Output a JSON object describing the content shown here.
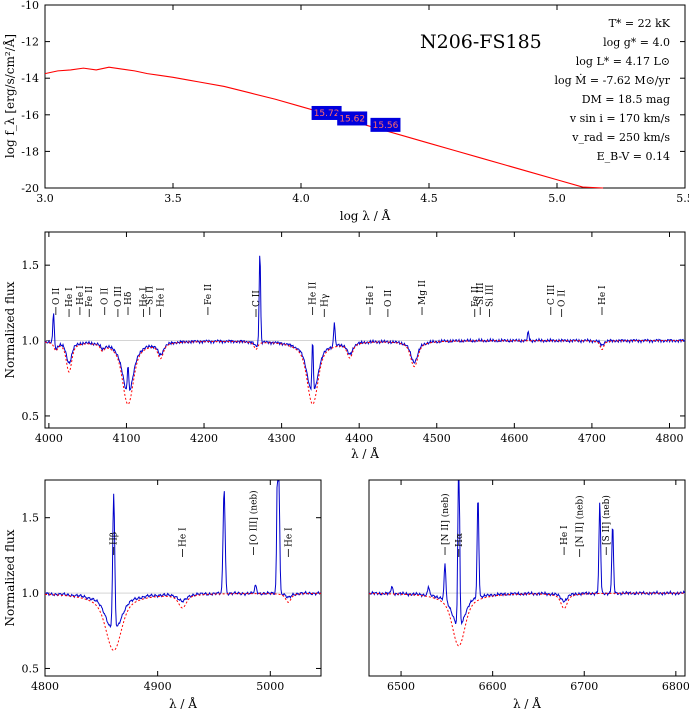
{
  "colors": {
    "model": "#ff0000",
    "observed": "#0000cc",
    "photbox": "#0000dd",
    "photlabel": "#ff6a6a"
  },
  "chart_data": [
    {
      "type": "line",
      "panel": "sed",
      "title": "N206-FS185",
      "xlabel": "log λ / Å",
      "ylabel": "log f_λ [erg/s/cm²/Å]",
      "xlim": [
        3.0,
        5.5
      ],
      "ylim": [
        -20,
        -10
      ],
      "xticks": [
        "3.0",
        "3.5",
        "4.0",
        "4.5",
        "5.0",
        "5.5"
      ],
      "yticks": [
        "-20",
        "-18",
        "-16",
        "-14",
        "-12",
        "-10"
      ],
      "model_sed": {
        "x": [
          3.0,
          3.05,
          3.1,
          3.15,
          3.2,
          3.25,
          3.3,
          3.35,
          3.4,
          3.45,
          3.5,
          3.56,
          3.6,
          3.7,
          3.8,
          3.9,
          4.0,
          4.1,
          4.2,
          4.3,
          4.4,
          4.5,
          4.6,
          4.7,
          4.8,
          4.9,
          5.0,
          5.1,
          5.18
        ],
        "y": [
          -13.75,
          -13.6,
          -13.55,
          -13.45,
          -13.55,
          -13.4,
          -13.5,
          -13.6,
          -13.75,
          -13.85,
          -13.95,
          -14.1,
          -14.2,
          -14.45,
          -14.8,
          -15.15,
          -15.55,
          -15.95,
          -16.35,
          -16.75,
          -17.15,
          -17.55,
          -17.95,
          -18.35,
          -18.75,
          -19.15,
          -19.55,
          -19.95,
          -20.0
        ]
      },
      "photometry": [
        {
          "x": 4.1,
          "y": -15.9,
          "label": "15.72"
        },
        {
          "x": 4.2,
          "y": -16.2,
          "label": "15.62"
        },
        {
          "x": 4.33,
          "y": -16.55,
          "label": "15.56"
        }
      ],
      "parameters": [
        "T* = 22 kK",
        "log g* = 4.0",
        "log L* = 4.17 L⊙",
        "log Ṁ = -7.62 M⊙/yr",
        "DM = 18.5 mag",
        "v sin i = 170 km/s",
        "v_rad = 250 km/s",
        "E_B-V = 0.14"
      ]
    },
    {
      "type": "line",
      "panel": "blue-spectrum",
      "xlabel": "λ / Å",
      "ylabel": "Normalized flux",
      "xlim": [
        3995,
        4820
      ],
      "ylim": [
        0.42,
        1.72
      ],
      "xticks": [
        "4000",
        "4100",
        "4200",
        "4300",
        "4400",
        "4500",
        "4600",
        "4700",
        "4800"
      ],
      "yticks": [
        "0.5",
        "1.0",
        "1.5"
      ],
      "absorption_lines": [
        {
          "center": 4009,
          "depth_obs": 0.04,
          "depth_model": 0.05,
          "width": 2
        },
        {
          "center": 4026,
          "depth_obs": 0.14,
          "depth_model": 0.2,
          "width": 3
        },
        {
          "center": 4069,
          "depth_obs": 0.03,
          "depth_model": 0.04,
          "width": 2
        },
        {
          "center": 4102,
          "depth_obs": 0.35,
          "depth_model": 0.42,
          "width": 6
        },
        {
          "center": 4144,
          "depth_obs": 0.08,
          "depth_model": 0.1,
          "width": 3
        },
        {
          "center": 4267,
          "depth_obs": 0.03,
          "depth_model": 0.05,
          "width": 2
        },
        {
          "center": 4340,
          "depth_obs": 0.35,
          "depth_model": 0.42,
          "width": 6
        },
        {
          "center": 4388,
          "depth_obs": 0.08,
          "depth_model": 0.1,
          "width": 3
        },
        {
          "center": 4471,
          "depth_obs": 0.14,
          "depth_model": 0.17,
          "width": 4
        },
        {
          "center": 4713,
          "depth_obs": 0.03,
          "depth_model": 0.06,
          "width": 2
        }
      ],
      "emission_spikes": [
        {
          "center": 4006,
          "height": 0.22
        },
        {
          "center": 4102,
          "height": 0.2
        },
        {
          "center": 4272,
          "height": 0.62
        },
        {
          "center": 4340,
          "height": 0.35
        },
        {
          "center": 4368,
          "height": 0.16
        },
        {
          "center": 4618,
          "height": 0.06
        }
      ],
      "line_ids": [
        {
          "x": 4009,
          "label": "O II"
        },
        {
          "x": 4026,
          "label": "He I"
        },
        {
          "x": 4040,
          "label": "He I"
        },
        {
          "x": 4052,
          "label": "Fe II"
        },
        {
          "x": 4072,
          "label": "O II"
        },
        {
          "x": 4089,
          "label": "O III"
        },
        {
          "x": 4102,
          "label": "Hδ"
        },
        {
          "x": 4122,
          "label": "He I"
        },
        {
          "x": 4130,
          "label": "Si II"
        },
        {
          "x": 4144,
          "label": "He I"
        },
        {
          "x": 4205,
          "label": "Fe II"
        },
        {
          "x": 4267,
          "label": "C II"
        },
        {
          "x": 4340,
          "label": "He II"
        },
        {
          "x": 4355,
          "label": "Hγ"
        },
        {
          "x": 4414,
          "label": "He I"
        },
        {
          "x": 4437,
          "label": "O II"
        },
        {
          "x": 4481,
          "label": "Mg II"
        },
        {
          "x": 4549,
          "label": "Fe II"
        },
        {
          "x": 4556,
          "label": "Si III"
        },
        {
          "x": 4568,
          "label": "Si III"
        },
        {
          "x": 4647,
          "label": "C III"
        },
        {
          "x": 4661,
          "label": "O II"
        },
        {
          "x": 4713,
          "label": "He I"
        }
      ]
    },
    {
      "type": "line",
      "panel": "hbeta-spectrum",
      "xlabel": "λ / Å",
      "ylabel": "Normalized flux",
      "xlim": [
        4800,
        5045
      ],
      "ylim": [
        0.45,
        1.75
      ],
      "xticks": [
        "4800",
        "4900",
        "5000"
      ],
      "yticks": [
        "0.5",
        "1.0",
        "1.5"
      ],
      "absorption_lines": [
        {
          "center": 4861,
          "depth_obs": 0.25,
          "depth_model": 0.38,
          "width": 6
        },
        {
          "center": 4922,
          "depth_obs": 0.05,
          "depth_model": 0.09,
          "width": 3
        },
        {
          "center": 5016,
          "depth_obs": 0.03,
          "depth_model": 0.06,
          "width": 2
        }
      ],
      "emission_spikes": [
        {
          "center": 4861,
          "height": 0.9
        },
        {
          "center": 4959,
          "height": 0.7
        },
        {
          "center": 4987,
          "height": 0.05
        },
        {
          "center": 5007,
          "height": 1.4
        }
      ],
      "line_ids": [
        {
          "x": 4861,
          "label": "Hβ"
        },
        {
          "x": 4922,
          "label": "He I"
        },
        {
          "x": 4985,
          "label": "[O III] (neb)"
        },
        {
          "x": 5016,
          "label": "He I"
        }
      ]
    },
    {
      "type": "line",
      "panel": "halpha-spectrum",
      "xlabel": "λ / Å",
      "xlim": [
        6465,
        6810
      ],
      "ylim": [
        0.45,
        1.75
      ],
      "xticks": [
        "6500",
        "6600",
        "6700",
        "6800"
      ],
      "yticks": [],
      "absorption_lines": [
        {
          "center": 6563,
          "depth_obs": 0.22,
          "depth_model": 0.35,
          "width": 6
        },
        {
          "center": 6678,
          "depth_obs": 0.05,
          "depth_model": 0.1,
          "width": 3
        }
      ],
      "emission_spikes": [
        {
          "center": 6548,
          "height": 0.25
        },
        {
          "center": 6563,
          "height": 1.3
        },
        {
          "center": 6584,
          "height": 0.68
        },
        {
          "center": 6717,
          "height": 0.6
        },
        {
          "center": 6731,
          "height": 0.45
        },
        {
          "center": 6490,
          "height": 0.05
        },
        {
          "center": 6530,
          "height": 0.06
        }
      ],
      "line_ids": [
        {
          "x": 6548,
          "label": "[N II] (neb)"
        },
        {
          "x": 6563,
          "label": "Hα"
        },
        {
          "x": 6678,
          "label": "He I"
        },
        {
          "x": 6695,
          "label": "[N II] (neb)"
        },
        {
          "x": 6724,
          "label": "[S II] (neb)"
        }
      ]
    }
  ]
}
